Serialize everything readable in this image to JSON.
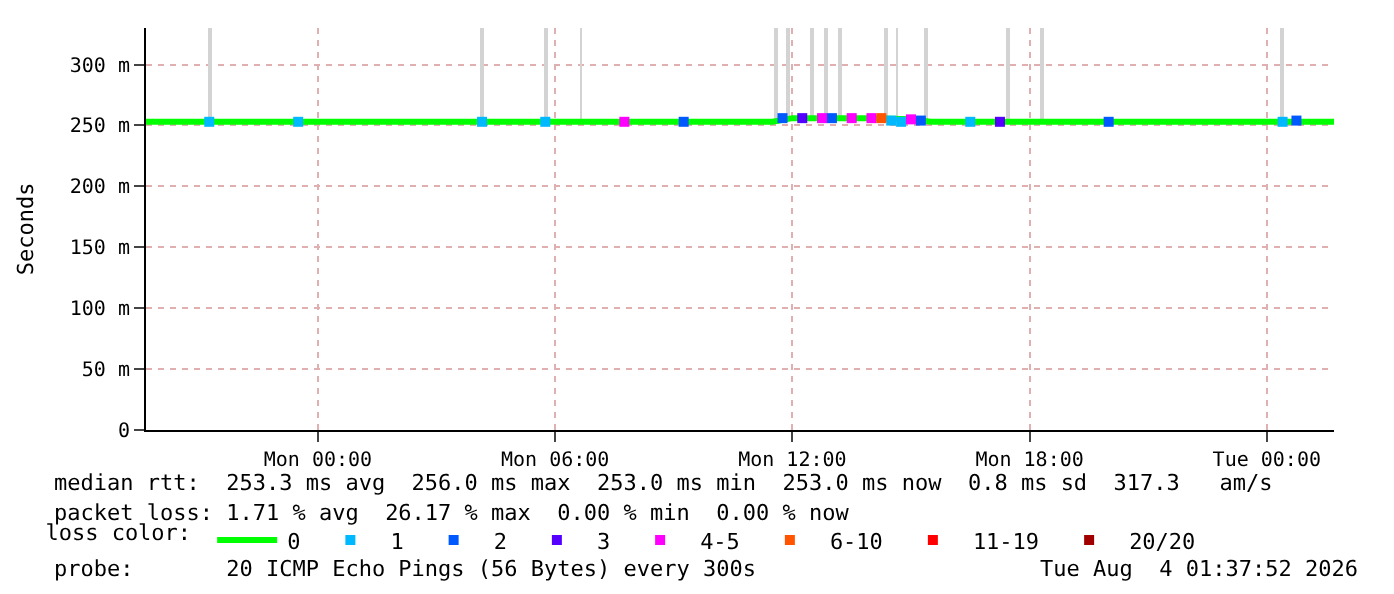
{
  "chart_data": {
    "type": "line",
    "ylabel": "Seconds",
    "legend_title": "loss color:",
    "legend": "bottom",
    "grid": true,
    "marker": "square",
    "xlim": [
      "2026-08-02T19:39",
      "2026-08-04T01:42"
    ],
    "xticks": [
      {
        "value": "2026-08-03T00:00",
        "label": "Mon 00:00"
      },
      {
        "value": "2026-08-03T06:00",
        "label": "Mon 06:00"
      },
      {
        "value": "2026-08-03T12:00",
        "label": "Mon 12:00"
      },
      {
        "value": "2026-08-03T18:00",
        "label": "Mon 18:00"
      },
      {
        "value": "2026-08-04T00:00",
        "label": "Tue 00:00"
      }
    ],
    "ylim": [
      0,
      330
    ],
    "yticks": [
      0,
      {
        "value": 50,
        "label": "50 m"
      },
      {
        "value": 100,
        "label": "100 m"
      },
      {
        "value": 150,
        "label": "150 m"
      },
      {
        "value": 200,
        "label": "200 m"
      },
      {
        "value": 250,
        "label": "250 m"
      },
      {
        "value": 300,
        "label": "300 m"
      }
    ],
    "series": [
      {
        "type": "bar",
        "color": "#d3d3d3",
        "x": [
          "2026-08-02T21:15",
          "2026-08-03T04:09",
          "2026-08-03T05:45",
          "2026-08-03T06:39",
          "2026-08-03T11:36",
          "2026-08-03T11:54",
          "2026-08-03T12:30",
          "2026-08-03T12:51",
          "2026-08-03T13:12",
          "2026-08-03T14:21",
          "2026-08-03T14:39",
          "2026-08-03T15:24",
          "2026-08-03T17:27",
          "2026-08-03T18:18",
          "2026-08-04T00:24"
        ],
        "base": [
          255,
          255,
          255,
          255,
          255,
          255,
          255,
          255,
          255,
          255,
          255,
          255,
          255,
          255,
          255
        ],
        "values": [
          75,
          75,
          75,
          75,
          75,
          75,
          75,
          75,
          75,
          75,
          75,
          75,
          75,
          75,
          75
        ]
      },
      {
        "name": "0",
        "color": "#00ff00",
        "marker": "none",
        "x": [
          "2026-08-02T19:39",
          "2026-08-02T22:00",
          "2026-08-03T02:00",
          "2026-08-03T06:00",
          "2026-08-03T10:00",
          "2026-08-03T11:30",
          "2026-08-03T12:00",
          "2026-08-03T13:00",
          "2026-08-03T14:00",
          "2026-08-03T15:00",
          "2026-08-03T15:30",
          "2026-08-03T18:00",
          "2026-08-03T22:00",
          "2026-08-04T01:42"
        ],
        "values": [
          253,
          253,
          253,
          253,
          253,
          253,
          256,
          256,
          256,
          255,
          253,
          253,
          253,
          253
        ]
      },
      {
        "type": "scatter",
        "name": "1",
        "color": "#00b8ff",
        "x": [
          "2026-08-02T21:15",
          "2026-08-02T23:30",
          "2026-08-03T04:09",
          "2026-08-03T05:45",
          "2026-08-03T14:30",
          "2026-08-03T14:45",
          "2026-08-03T16:30",
          "2026-08-04T00:24"
        ],
        "values": [
          253,
          253,
          253,
          253,
          254,
          253,
          253,
          253
        ]
      },
      {
        "type": "scatter",
        "name": "2",
        "color": "#0059ff",
        "x": [
          "2026-08-03T09:15",
          "2026-08-03T11:45",
          "2026-08-03T13:00",
          "2026-08-03T15:15",
          "2026-08-03T20:00",
          "2026-08-04T00:45"
        ],
        "values": [
          253,
          256,
          256,
          254,
          253,
          254
        ]
      },
      {
        "type": "scatter",
        "name": "3",
        "color": "#5500ff",
        "x": [
          "2026-08-03T12:15",
          "2026-08-03T17:15"
        ],
        "values": [
          256,
          253
        ]
      },
      {
        "type": "scatter",
        "name": "4-5",
        "color": "#ff00ff",
        "x": [
          "2026-08-03T07:45",
          "2026-08-03T12:45",
          "2026-08-03T13:30",
          "2026-08-03T14:00",
          "2026-08-03T15:00"
        ],
        "values": [
          253,
          256,
          256,
          256,
          255
        ]
      },
      {
        "type": "scatter",
        "name": "6-10",
        "color": "#ff5500",
        "x": [
          "2026-08-03T14:15"
        ],
        "values": [
          256
        ]
      },
      {
        "type": "scatter",
        "name": "11-19",
        "color": "#ff0000"
      },
      {
        "type": "scatter",
        "name": "20/20",
        "color": "#a10000"
      }
    ],
    "annotations": [
      "median rtt:  253.3 ms avg  256.0 ms max  253.0 ms min  253.0 ms now  0.8 ms sd  317.3   am/s",
      "packet loss: 1.71 % avg  26.17 % max  0.00 % min  0.00 % now",
      "probe:       20 ICMP Echo Pings (56 Bytes) every 300s",
      "Tue Aug  4 01:37:52 2026"
    ]
  }
}
